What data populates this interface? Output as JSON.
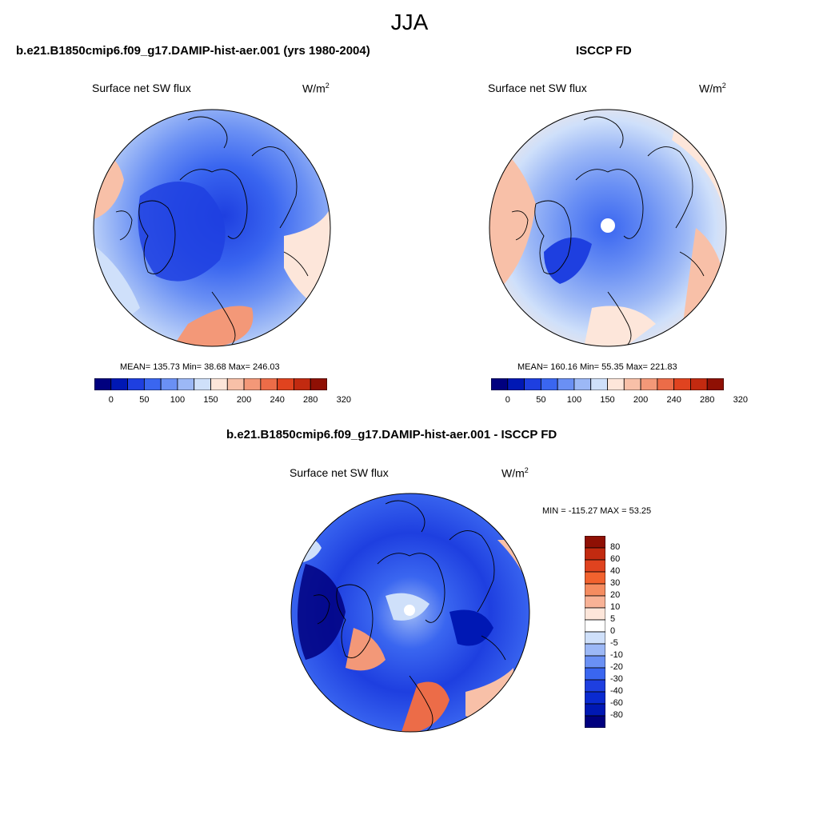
{
  "title": "JJA",
  "panel_a": {
    "case_title": "b.e21.B1850cmip6.f09_g17.DAMIP-hist-aer.001 (yrs 1980-2004)",
    "variable": "Surface net SW flux",
    "units": "W/m",
    "units_exp": "2",
    "stats": "MEAN= 135.73  Min=  38.68  Max= 246.03"
  },
  "panel_b": {
    "case_title": "ISCCP FD",
    "variable": "Surface net SW flux",
    "units": "W/m",
    "units_exp": "2",
    "stats": "MEAN= 160.16  Min=  55.35  Max= 221.83"
  },
  "panel_c": {
    "case_title": "b.e21.B1850cmip6.f09_g17.DAMIP-hist-aer.001 - ISCCP FD",
    "variable": "Surface net SW flux",
    "units": "W/m",
    "units_exp": "2",
    "stats": "MIN = -115.27 MAX =  53.25"
  },
  "colorbar_abs": {
    "colors": [
      "#00007f",
      "#0018b4",
      "#1e3fe0",
      "#3a66f0",
      "#6a90f4",
      "#9cb8f6",
      "#cfe0fa",
      "#fde6da",
      "#f8c0a8",
      "#f39878",
      "#ec6c48",
      "#e0431f",
      "#c22a10",
      "#8f1004"
    ],
    "tick_labels": [
      "0",
      "50",
      "100",
      "150",
      "200",
      "240",
      "280",
      "320"
    ]
  },
  "colorbar_diff": {
    "colors": [
      "#8f1004",
      "#c22a10",
      "#e0431f",
      "#f2622e",
      "#f58c60",
      "#f8b296",
      "#fde6da",
      "#ffffff",
      "#cfe0fa",
      "#9cb8f6",
      "#6a90f4",
      "#3a66f0",
      "#1e3fe0",
      "#0a2ad0",
      "#0018b4",
      "#00007f"
    ],
    "tick_labels": [
      "80",
      "60",
      "40",
      "30",
      "20",
      "10",
      "5",
      "0",
      "-5",
      "-10",
      "-20",
      "-30",
      "-40",
      "-60",
      "-80"
    ]
  }
}
